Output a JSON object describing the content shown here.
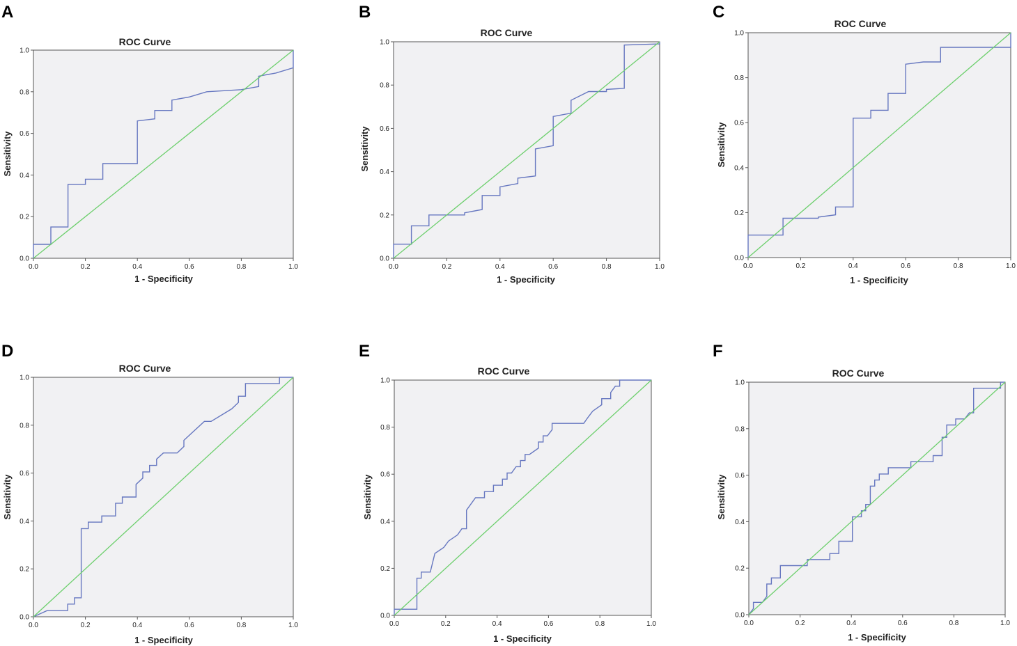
{
  "chart_data": [
    {
      "panel": "A",
      "type": "line",
      "title": "ROC Curve",
      "xlabel": "1 - Specificity",
      "ylabel": "Sensitivity",
      "xlim": [
        0,
        1
      ],
      "ylim": [
        0,
        1
      ],
      "xticks": [
        "0.0",
        "0.2",
        "0.4",
        "0.6",
        "0.8",
        "1.0"
      ],
      "yticks": [
        "0.0",
        "0.2",
        "0.4",
        "0.6",
        "0.8",
        "1.0"
      ],
      "series": [
        {
          "name": "roc",
          "x": [
            0,
            0,
            0.067,
            0.067,
            0.133,
            0.133,
            0.2,
            0.2,
            0.267,
            0.267,
            0.4,
            0.4,
            0.467,
            0.467,
            0.533,
            0.533,
            0.6,
            0.667,
            0.8,
            0.867,
            0.867,
            0.933,
            1.0,
            1.0
          ],
          "y": [
            0,
            0.067,
            0.067,
            0.15,
            0.15,
            0.355,
            0.355,
            0.38,
            0.38,
            0.455,
            0.455,
            0.66,
            0.67,
            0.71,
            0.71,
            0.76,
            0.775,
            0.8,
            0.81,
            0.825,
            0.875,
            0.89,
            0.915,
            1.0
          ]
        },
        {
          "name": "reference",
          "x": [
            0,
            1
          ],
          "y": [
            0,
            1
          ]
        }
      ]
    },
    {
      "panel": "B",
      "type": "line",
      "title": "ROC Curve",
      "xlabel": "1 - Specificity",
      "ylabel": "Sensitivity",
      "xlim": [
        0,
        1
      ],
      "ylim": [
        0,
        1
      ],
      "xticks": [
        "0.0",
        "0.2",
        "0.4",
        "0.6",
        "0.8",
        "1.0"
      ],
      "yticks": [
        "0.0",
        "0.2",
        "0.4",
        "0.6",
        "0.8",
        "1.0"
      ],
      "series": [
        {
          "name": "roc",
          "x": [
            0,
            0,
            0.067,
            0.067,
            0.133,
            0.133,
            0.267,
            0.267,
            0.333,
            0.333,
            0.4,
            0.4,
            0.467,
            0.467,
            0.533,
            0.533,
            0.6,
            0.6,
            0.667,
            0.667,
            0.733,
            0.8,
            0.8,
            0.867,
            0.867,
            1.0,
            1.0
          ],
          "y": [
            0,
            0.065,
            0.065,
            0.15,
            0.15,
            0.2,
            0.2,
            0.21,
            0.225,
            0.29,
            0.29,
            0.33,
            0.345,
            0.37,
            0.38,
            0.505,
            0.52,
            0.655,
            0.67,
            0.73,
            0.77,
            0.77,
            0.78,
            0.785,
            0.985,
            0.99,
            1.0
          ]
        },
        {
          "name": "reference",
          "x": [
            0,
            1
          ],
          "y": [
            0,
            1
          ]
        }
      ]
    },
    {
      "panel": "C",
      "type": "line",
      "title": "ROC Curve",
      "xlabel": "1 - Specificity",
      "ylabel": "Sensitivity",
      "xlim": [
        0,
        1
      ],
      "ylim": [
        0,
        1
      ],
      "xticks": [
        "0.0",
        "0.2",
        "0.4",
        "0.6",
        "0.8",
        "1.0"
      ],
      "yticks": [
        "0.0",
        "0.2",
        "0.4",
        "0.6",
        "0.8",
        "1.0"
      ],
      "series": [
        {
          "name": "roc",
          "x": [
            0,
            0,
            0.133,
            0.133,
            0.267,
            0.267,
            0.333,
            0.333,
            0.4,
            0.4,
            0.467,
            0.467,
            0.533,
            0.533,
            0.6,
            0.6,
            0.667,
            0.733,
            0.733,
            1.0,
            1.0
          ],
          "y": [
            0,
            0.1,
            0.1,
            0.175,
            0.175,
            0.18,
            0.19,
            0.225,
            0.225,
            0.62,
            0.62,
            0.655,
            0.655,
            0.73,
            0.73,
            0.86,
            0.87,
            0.87,
            0.935,
            0.935,
            1.0
          ]
        },
        {
          "name": "reference",
          "x": [
            0,
            1
          ],
          "y": [
            0,
            1
          ]
        }
      ]
    },
    {
      "panel": "D",
      "type": "line",
      "title": "ROC Curve",
      "xlabel": "1 - Specificity",
      "ylabel": "Sensitivity",
      "xlim": [
        0,
        1
      ],
      "ylim": [
        0,
        1
      ],
      "xticks": [
        "0.0",
        "0.2",
        "0.4",
        "0.6",
        "0.8",
        "1.0"
      ],
      "yticks": [
        "0.0",
        "0.2",
        "0.4",
        "0.6",
        "0.8",
        "1.0"
      ],
      "series": [
        {
          "name": "roc",
          "x": [
            0,
            0.053,
            0.053,
            0.132,
            0.132,
            0.158,
            0.158,
            0.184,
            0.184,
            0.211,
            0.211,
            0.263,
            0.263,
            0.316,
            0.316,
            0.342,
            0.342,
            0.368,
            0.395,
            0.395,
            0.421,
            0.421,
            0.447,
            0.447,
            0.474,
            0.474,
            0.5,
            0.5,
            0.553,
            0.579,
            0.579,
            0.605,
            0.605,
            0.658,
            0.684,
            0.763,
            0.789,
            0.789,
            0.816,
            0.816,
            0.947,
            0.947,
            1.0
          ],
          "y": [
            0,
            0.026,
            0.026,
            0.026,
            0.053,
            0.053,
            0.079,
            0.079,
            0.368,
            0.368,
            0.395,
            0.395,
            0.421,
            0.421,
            0.474,
            0.474,
            0.5,
            0.5,
            0.5,
            0.553,
            0.579,
            0.605,
            0.605,
            0.632,
            0.632,
            0.658,
            0.684,
            0.684,
            0.684,
            0.711,
            0.737,
            0.763,
            0.763,
            0.816,
            0.816,
            0.868,
            0.895,
            0.921,
            0.921,
            0.974,
            0.974,
            1.0,
            1.0
          ]
        },
        {
          "name": "reference",
          "x": [
            0,
            1
          ],
          "y": [
            0,
            1
          ]
        }
      ]
    },
    {
      "panel": "E",
      "type": "line",
      "title": "ROC Curve",
      "xlabel": "1 - Specificity",
      "ylabel": "Sensitivity",
      "xlim": [
        0,
        1
      ],
      "ylim": [
        0,
        1
      ],
      "xticks": [
        "0.0",
        "0.2",
        "0.4",
        "0.6",
        "0.8",
        "1.0"
      ],
      "yticks": [
        "0.0",
        "0.2",
        "0.4",
        "0.6",
        "0.8",
        "1.0"
      ],
      "series": [
        {
          "name": "roc",
          "x": [
            0,
            0,
            0.088,
            0.088,
            0.105,
            0.105,
            0.14,
            0.14,
            0.158,
            0.158,
            0.193,
            0.193,
            0.211,
            0.211,
            0.246,
            0.246,
            0.263,
            0.281,
            0.281,
            0.316,
            0.351,
            0.351,
            0.386,
            0.386,
            0.421,
            0.421,
            0.439,
            0.439,
            0.456,
            0.474,
            0.491,
            0.491,
            0.509,
            0.509,
            0.526,
            0.561,
            0.561,
            0.579,
            0.579,
            0.596,
            0.614,
            0.614,
            0.649,
            0.649,
            0.667,
            0.737,
            0.754,
            0.754,
            0.772,
            0.772,
            0.807,
            0.807,
            0.825,
            0.842,
            0.842,
            0.86,
            0.877,
            0.877,
            0.895,
            0.895,
            1.0
          ],
          "y": [
            0,
            0.026,
            0.026,
            0.158,
            0.158,
            0.184,
            0.184,
            0.184,
            0.263,
            0.263,
            0.289,
            0.289,
            0.316,
            0.316,
            0.342,
            0.342,
            0.368,
            0.368,
            0.447,
            0.5,
            0.5,
            0.526,
            0.526,
            0.553,
            0.553,
            0.579,
            0.579,
            0.605,
            0.605,
            0.632,
            0.632,
            0.658,
            0.658,
            0.684,
            0.684,
            0.711,
            0.737,
            0.737,
            0.763,
            0.763,
            0.789,
            0.816,
            0.816,
            0.816,
            0.816,
            0.816,
            0.842,
            0.842,
            0.868,
            0.868,
            0.895,
            0.921,
            0.921,
            0.921,
            0.947,
            0.974,
            0.974,
            1.0,
            1.0,
            1.0,
            1.0
          ]
        },
        {
          "name": "reference",
          "x": [
            0,
            1
          ],
          "y": [
            0,
            1
          ]
        }
      ]
    },
    {
      "panel": "F",
      "type": "line",
      "title": "ROC Curve",
      "xlabel": "1 - Specificity",
      "ylabel": "Sensitivity",
      "xlim": [
        0,
        1
      ],
      "ylim": [
        0,
        1
      ],
      "xticks": [
        "0.0",
        "0.2",
        "0.4",
        "0.6",
        "0.8",
        "1.0"
      ],
      "yticks": [
        "0.0",
        "0.2",
        "0.4",
        "0.6",
        "0.8",
        "1.0"
      ],
      "series": [
        {
          "name": "roc",
          "x": [
            0,
            0.018,
            0.018,
            0.053,
            0.053,
            0.07,
            0.07,
            0.088,
            0.088,
            0.123,
            0.123,
            0.228,
            0.228,
            0.316,
            0.316,
            0.351,
            0.351,
            0.404,
            0.404,
            0.421,
            0.439,
            0.439,
            0.456,
            0.456,
            0.474,
            0.474,
            0.491,
            0.491,
            0.509,
            0.509,
            0.544,
            0.544,
            0.596,
            0.632,
            0.632,
            0.719,
            0.719,
            0.754,
            0.754,
            0.772,
            0.772,
            0.807,
            0.807,
            0.842,
            0.86,
            0.86,
            0.877,
            0.877,
            0.982,
            0.982,
            1.0
          ],
          "y": [
            0,
            0.026,
            0.053,
            0.053,
            0.053,
            0.079,
            0.132,
            0.132,
            0.158,
            0.158,
            0.211,
            0.211,
            0.237,
            0.237,
            0.263,
            0.263,
            0.316,
            0.316,
            0.421,
            0.421,
            0.421,
            0.447,
            0.447,
            0.474,
            0.474,
            0.553,
            0.553,
            0.579,
            0.579,
            0.605,
            0.605,
            0.632,
            0.632,
            0.632,
            0.658,
            0.658,
            0.684,
            0.684,
            0.763,
            0.763,
            0.816,
            0.816,
            0.842,
            0.842,
            0.868,
            0.868,
            0.868,
            0.974,
            0.974,
            1.0,
            1.0
          ]
        },
        {
          "name": "reference",
          "x": [
            0,
            1
          ],
          "y": [
            0,
            1
          ]
        }
      ]
    }
  ]
}
